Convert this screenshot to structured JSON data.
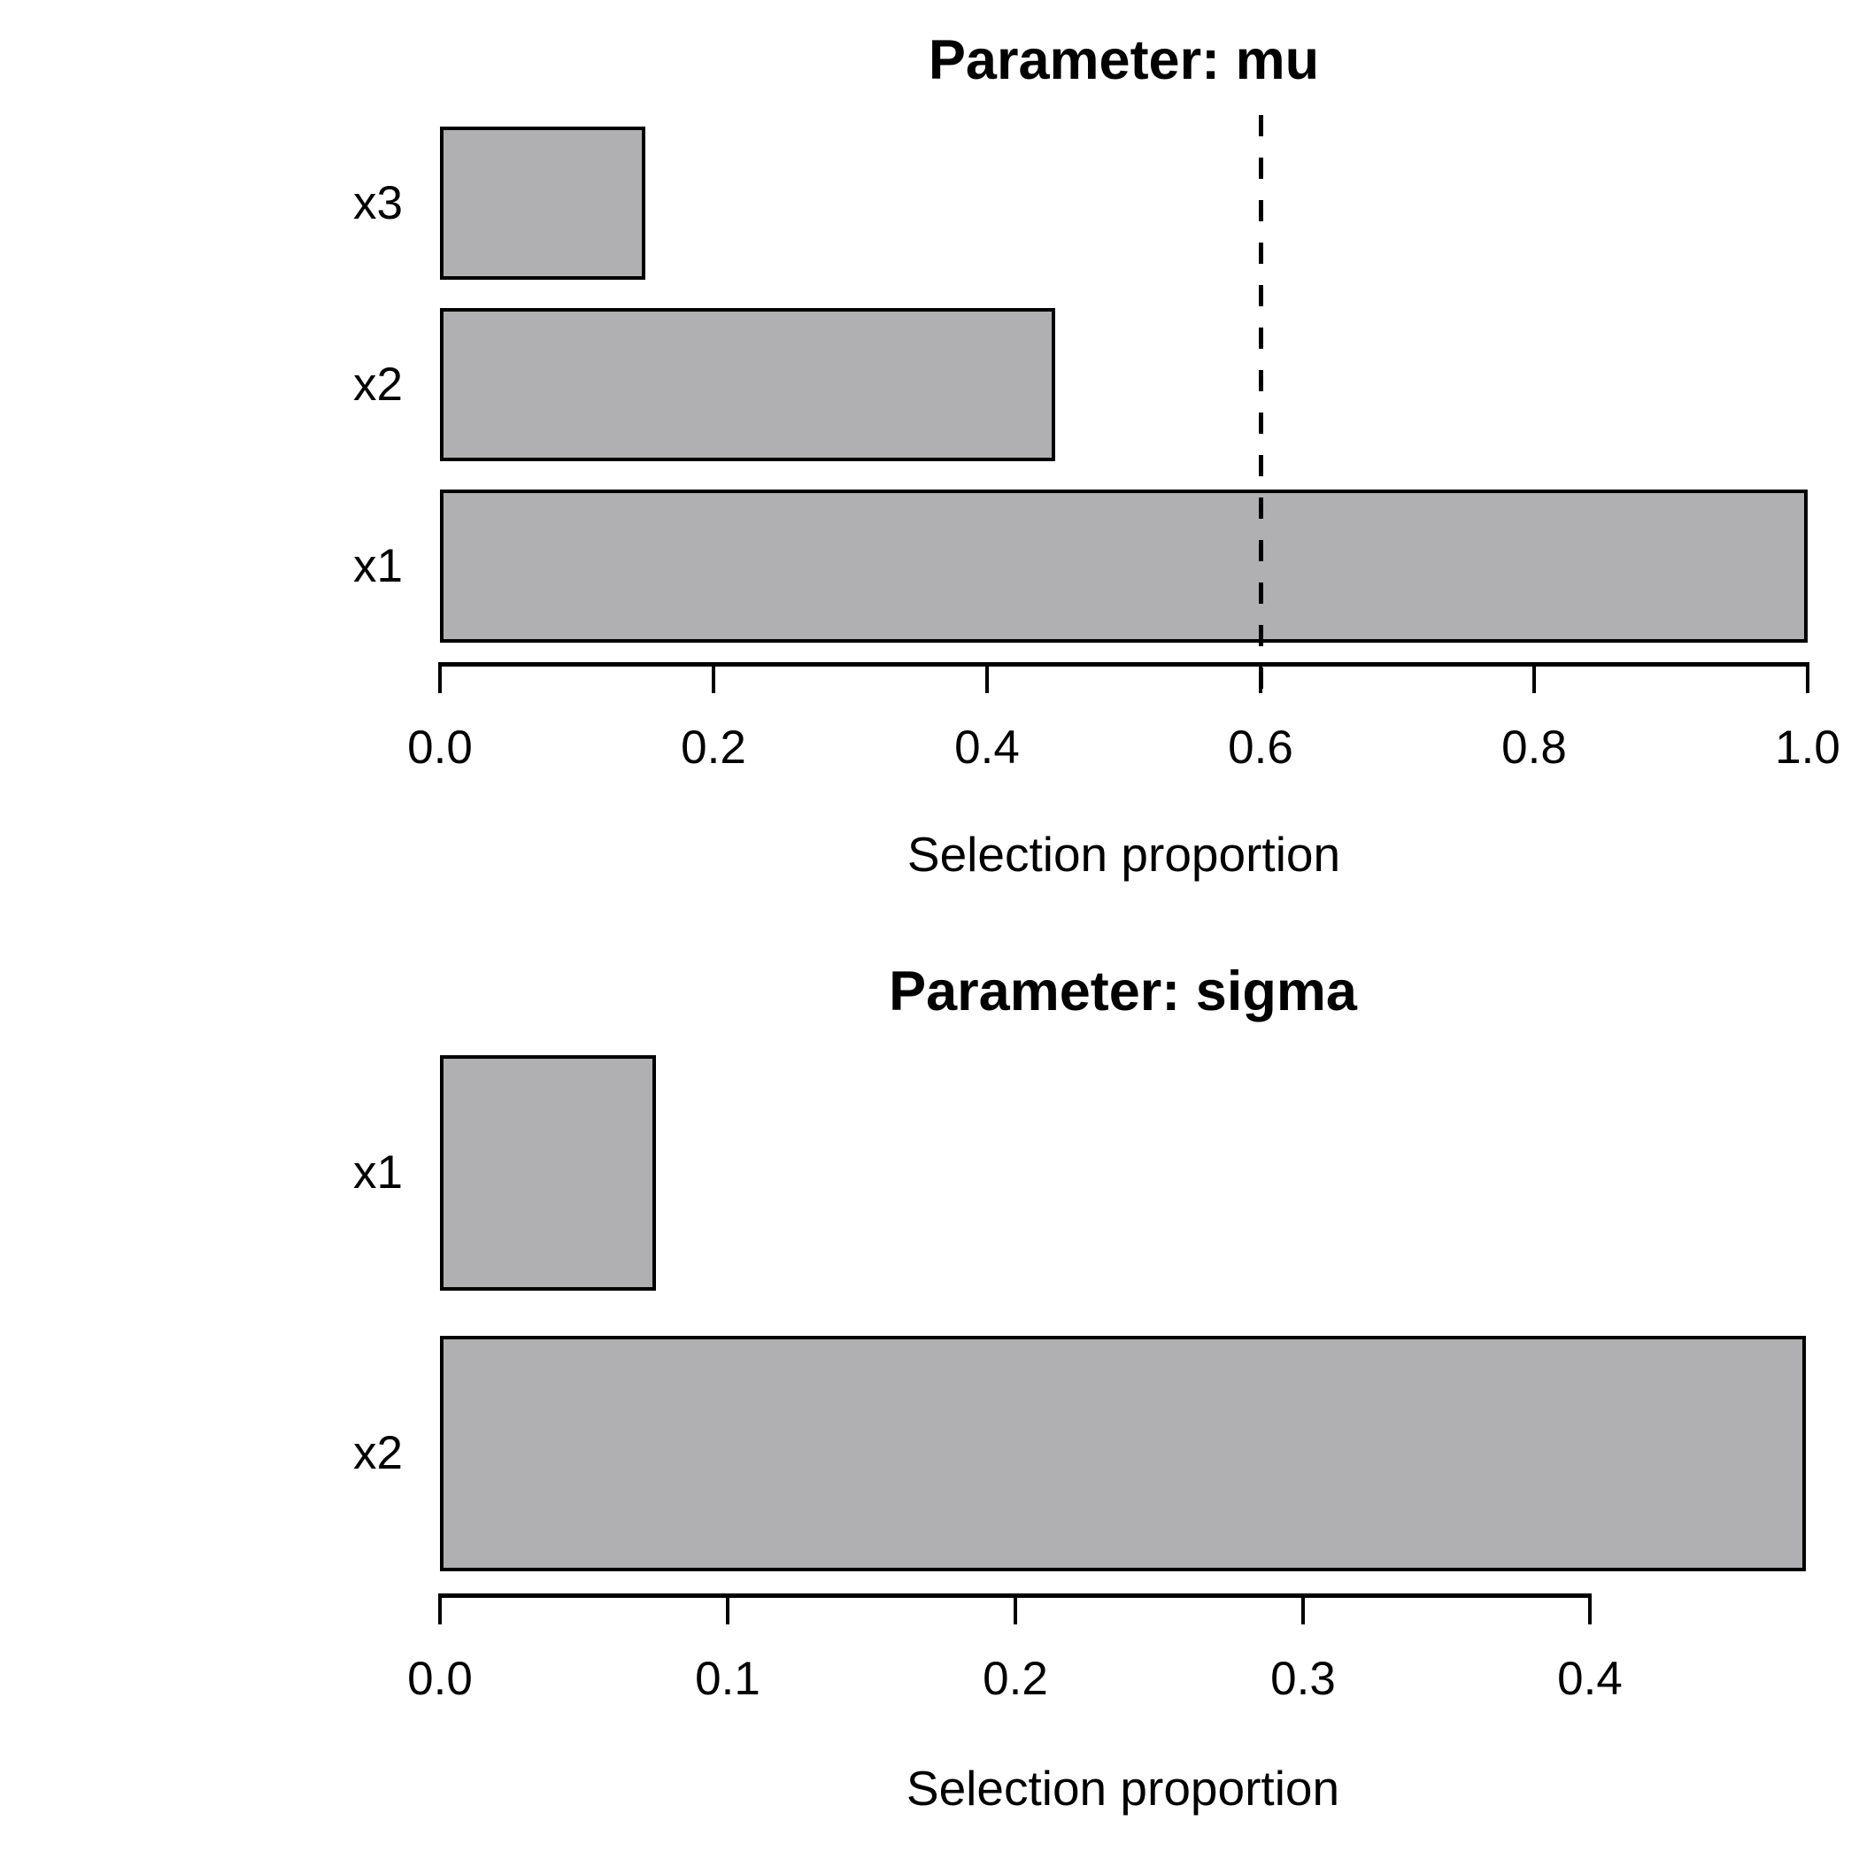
{
  "figure": {
    "background": "#ffffff",
    "bar_fill": "#B0B0B2",
    "bar_border": "#000000",
    "text_color": "#000000"
  },
  "chart_data": [
    {
      "type": "bar",
      "orientation": "horizontal",
      "title": "Parameter: mu",
      "xlabel": "Selection proportion",
      "categories": [
        "x3",
        "x2",
        "x1"
      ],
      "values": [
        0.15,
        0.45,
        1.0
      ],
      "xlim": [
        0,
        1.0
      ],
      "xticks": [
        0.0,
        0.2,
        0.4,
        0.6,
        0.8,
        1.0
      ],
      "xtick_labels": [
        "0.0",
        "0.2",
        "0.4",
        "0.6",
        "0.8",
        "1.0"
      ],
      "vline": 0.6,
      "vline_style": "dashed",
      "grid": false,
      "legend": null
    },
    {
      "type": "bar",
      "orientation": "horizontal",
      "title": "Parameter: sigma",
      "xlabel": "Selection proportion",
      "categories": [
        "x1",
        "x2"
      ],
      "values": [
        0.075,
        0.475
      ],
      "xlim": [
        0,
        0.475
      ],
      "xticks": [
        0.0,
        0.1,
        0.2,
        0.3,
        0.4
      ],
      "xtick_labels": [
        "0.0",
        "0.1",
        "0.2",
        "0.3",
        "0.4"
      ],
      "vline": null,
      "vline_style": null,
      "grid": false,
      "legend": null
    }
  ]
}
